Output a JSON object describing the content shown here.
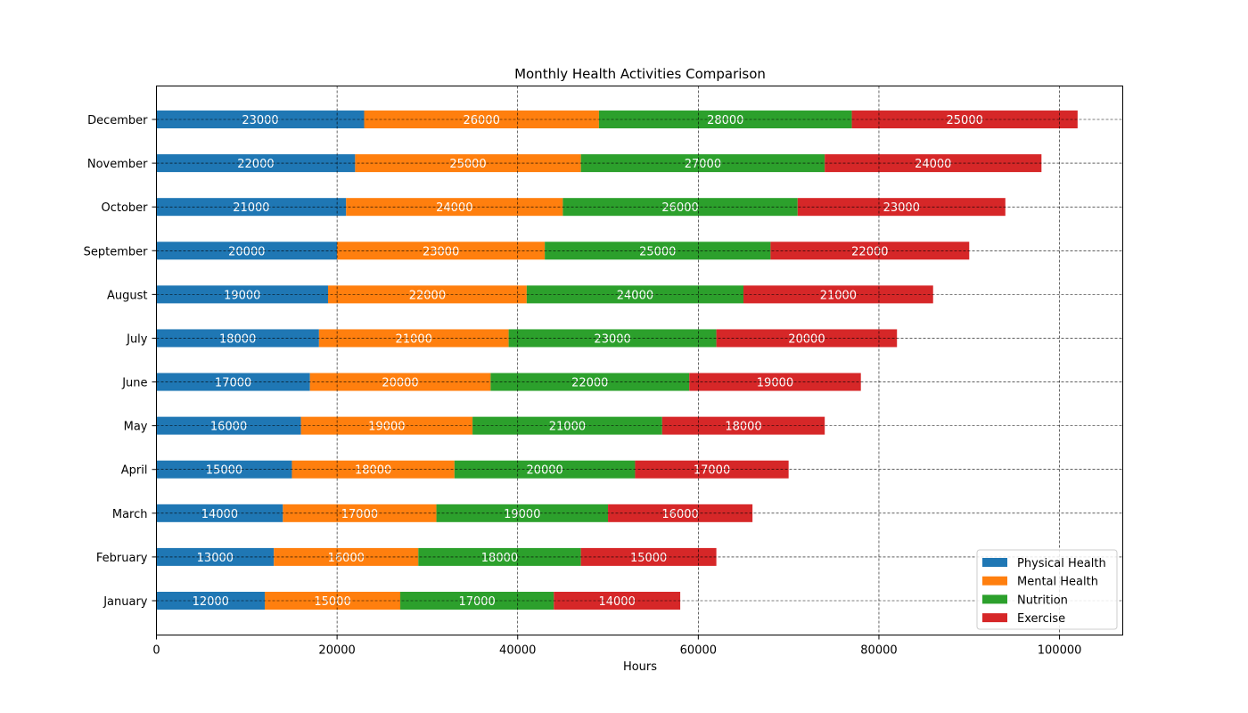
{
  "chart_data": {
    "type": "bar",
    "orientation": "horizontal",
    "stacked": true,
    "title": "Monthly Health Activities Comparison",
    "xlabel": "Hours",
    "ylabel": "",
    "xlim": [
      0,
      107000
    ],
    "xticks": [
      0,
      20000,
      40000,
      60000,
      80000,
      100000
    ],
    "grid": true,
    "legend_position": "lower-right",
    "categories": [
      "January",
      "February",
      "March",
      "April",
      "May",
      "June",
      "July",
      "August",
      "September",
      "October",
      "November",
      "December"
    ],
    "series": [
      {
        "name": "Physical Health",
        "color": "#1f77b4",
        "values": [
          12000,
          13000,
          14000,
          15000,
          16000,
          17000,
          18000,
          19000,
          20000,
          21000,
          22000,
          23000
        ]
      },
      {
        "name": "Mental Health",
        "color": "#ff7f0e",
        "values": [
          15000,
          16000,
          17000,
          18000,
          19000,
          20000,
          21000,
          22000,
          23000,
          24000,
          25000,
          26000
        ]
      },
      {
        "name": "Nutrition",
        "color": "#2ca02c",
        "values": [
          17000,
          18000,
          19000,
          20000,
          21000,
          22000,
          23000,
          24000,
          25000,
          26000,
          27000,
          28000
        ]
      },
      {
        "name": "Exercise",
        "color": "#d62728",
        "values": [
          14000,
          15000,
          16000,
          17000,
          18000,
          19000,
          20000,
          21000,
          22000,
          23000,
          24000,
          25000
        ]
      }
    ]
  }
}
